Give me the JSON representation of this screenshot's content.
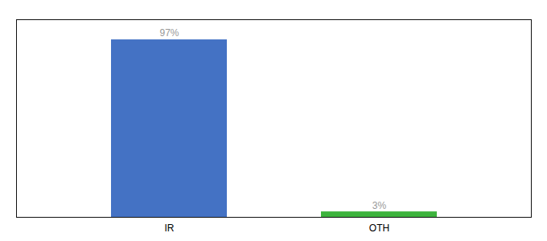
{
  "chart_data": {
    "type": "bar",
    "categories": [
      "IR",
      "OTH"
    ],
    "values": [
      97,
      3
    ],
    "value_labels": [
      "97%",
      "3%"
    ],
    "colors": [
      "#4472c4",
      "#3db33d"
    ],
    "ylim": [
      0,
      108
    ],
    "data_labels": true,
    "tick_labels": "x",
    "grid": false
  }
}
